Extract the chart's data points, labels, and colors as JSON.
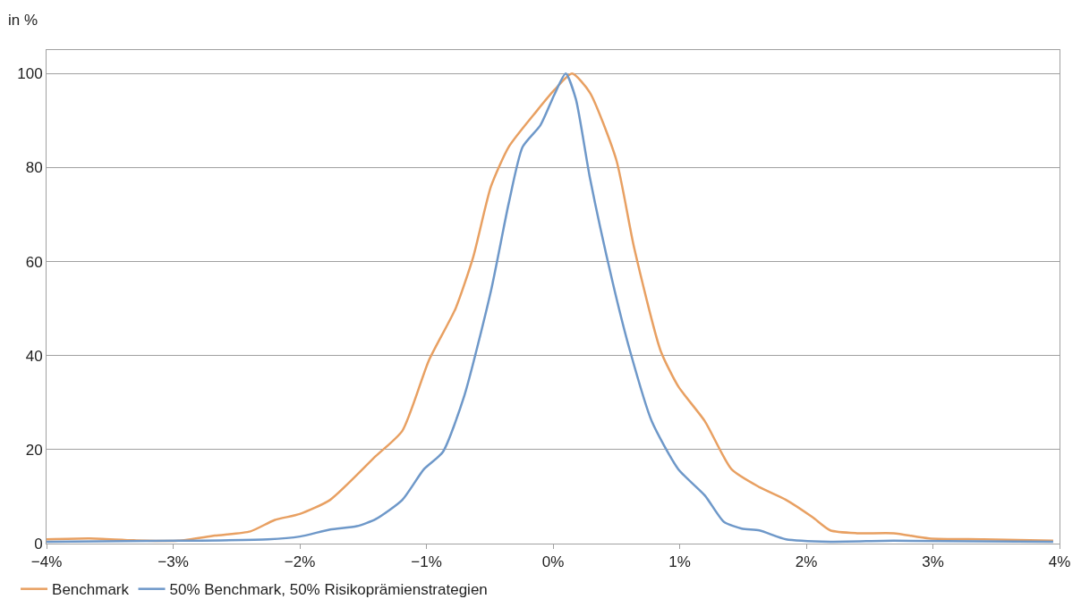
{
  "chart_data": {
    "type": "line",
    "ylabel": "in %",
    "xlim": [
      -4,
      4
    ],
    "xticks": [
      {
        "value": -4,
        "label": "−4%"
      },
      {
        "value": -3,
        "label": "−3%"
      },
      {
        "value": -2,
        "label": "−2%"
      },
      {
        "value": -1,
        "label": "−1%"
      },
      {
        "value": 0,
        "label": "0%"
      },
      {
        "value": 1,
        "label": "1%"
      },
      {
        "value": 2,
        "label": "2%"
      },
      {
        "value": 3,
        "label": "3%"
      },
      {
        "value": 4,
        "label": "4%"
      }
    ],
    "ylim": [
      0,
      105
    ],
    "yticks": [
      0,
      20,
      40,
      60,
      80,
      100
    ],
    "grid": "y",
    "legend": "bottom left",
    "marker": "none",
    "line_style": "solid",
    "series": [
      {
        "name": "Benchmark",
        "color": "#e8a062",
        "x": [
          -4,
          -3.66,
          -3.31,
          -2.96,
          -2.67,
          -2.39,
          -2.2,
          -2,
          -1.76,
          -1.4,
          -1.19,
          -0.98,
          -0.77,
          -0.63,
          -0.49,
          -0.35,
          -0.13,
          0.01,
          0.15,
          0.29,
          0.5,
          0.64,
          0.85,
          0.99,
          1.2,
          1.41,
          1.63,
          1.84,
          2.05,
          2.19,
          2.4,
          2.69,
          2.97,
          3.4,
          3.95
        ],
        "values": [
          0.9,
          1.1,
          0.7,
          0.6,
          1.7,
          2.6,
          5,
          6.3,
          9.3,
          18.6,
          24,
          39,
          50,
          61,
          76,
          84.4,
          92,
          96.5,
          100,
          96,
          81.6,
          63,
          41,
          33.4,
          26,
          15.8,
          12,
          9.3,
          5.6,
          2.8,
          2.2,
          2.2,
          1.1,
          0.9,
          0.6
        ]
      },
      {
        "name": "50% Benchmark, 50% Risikoprämienstrategien",
        "color": "#6e98c9",
        "x": [
          -4,
          -2.96,
          -2.25,
          -2,
          -1.76,
          -1.55,
          -1.4,
          -1.19,
          -1.02,
          -0.87,
          -0.7,
          -0.49,
          -0.35,
          -0.24,
          -0.1,
          0.01,
          0.1,
          0.18,
          0.29,
          0.47,
          0.61,
          0.78,
          0.99,
          1.2,
          1.35,
          1.49,
          1.63,
          1.84,
          2.19,
          2.69,
          3.95
        ],
        "values": [
          0.4,
          0.6,
          0.9,
          1.5,
          3,
          3.7,
          5.2,
          9.3,
          15.8,
          19.5,
          31.5,
          53.8,
          72.4,
          84.4,
          89,
          95.5,
          100,
          94.6,
          78,
          55.7,
          40.8,
          26,
          15.8,
          10.2,
          4.6,
          3.2,
          2.8,
          0.9,
          0.4,
          0.6,
          0.4
        ]
      }
    ]
  }
}
